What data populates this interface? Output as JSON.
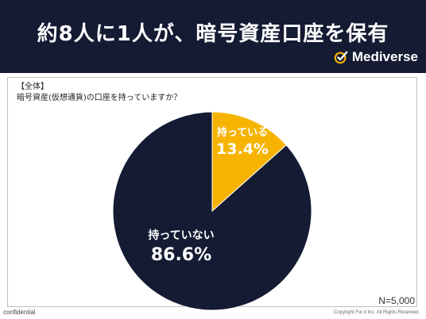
{
  "header": {
    "headline": "約8人に1人が、暗号資産口座を保有",
    "brand_name": "Mediverse",
    "brand_icon": "check-circle-icon"
  },
  "panel": {
    "section_tag": "【全体】",
    "question": "暗号資産(仮想通貨)の口座を持っていますか？",
    "sample_size": "N=5,000"
  },
  "footer": {
    "confidential": "confidential",
    "copyright": "Copyright For it Inc. All Rights Reserved."
  },
  "colors": {
    "header_bg": "#141b33",
    "have_slice": "#f6b400",
    "not_have_slice": "#141b33"
  },
  "chart_data": {
    "type": "pie",
    "start_angle_deg": 0,
    "direction": "clockwise",
    "slices": [
      {
        "label": "持っている",
        "value": 13.4,
        "display": "13.4%",
        "color": "#f6b400"
      },
      {
        "label": "持っていない",
        "value": 86.6,
        "display": "86.6%",
        "color": "#141b33"
      }
    ]
  }
}
